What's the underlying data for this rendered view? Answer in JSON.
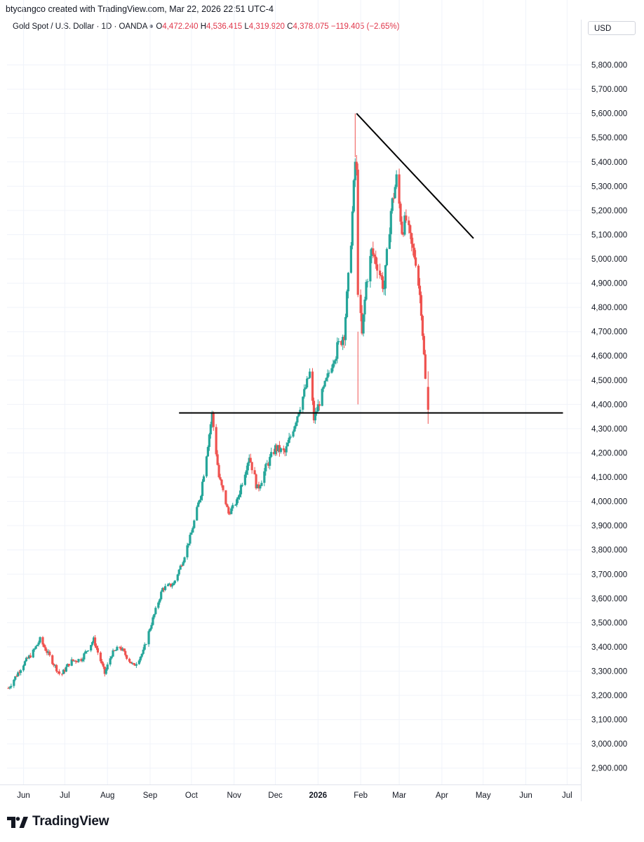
{
  "header": {
    "attribution": "btycangco created with TradingView.com, Mar 22, 2026 22:51 UTC-4"
  },
  "legend": {
    "symbol": "Gold Spot / U.S. Dollar · 1D · OANDA",
    "open_label": "O",
    "open": "4,472.240",
    "high_label": "H",
    "high": "4,536.415",
    "low_label": "L",
    "low": "4,319.920",
    "close_label": "C",
    "close": "4,378.075",
    "change": "−119.405 (−2.65%)"
  },
  "currency_button": "USD",
  "brand": {
    "name": "TradingView",
    "logo_icon": "tradingview-logo-icon"
  },
  "colors": {
    "up": "#26a69a",
    "down": "#ef5350",
    "trendline": "#000000"
  },
  "chart_data": {
    "type": "candlestick",
    "title": "Gold Spot / U.S. Dollar",
    "interval": "1D",
    "grid": true,
    "ylim": [
      2850,
      5900
    ],
    "y_ticks": [
      "5,800.000",
      "5,700.000",
      "5,600.000",
      "5,500.000",
      "5,400.000",
      "5,300.000",
      "5,200.000",
      "5,100.000",
      "5,000.000",
      "4,900.000",
      "4,800.000",
      "4,700.000",
      "4,600.000",
      "4,500.000",
      "4,400.000",
      "4,300.000",
      "4,200.000",
      "4,100.000",
      "4,000.000",
      "3,900.000",
      "3,800.000",
      "3,700.000",
      "3,600.000",
      "3,500.000",
      "3,400.000",
      "3,300.000",
      "3,200.000",
      "3,100.000",
      "3,000.000",
      "2,900.000"
    ],
    "x_ticks": [
      "Jun",
      "Jul",
      "Aug",
      "Sep",
      "Oct",
      "Nov",
      "Dec",
      "2026",
      "Feb",
      "Mar",
      "Apr",
      "May",
      "Jun",
      "Jul"
    ],
    "x_range": [
      "2025-05-20",
      "2026-07-11"
    ],
    "price_path": [
      [
        "2025-05-21",
        3230
      ],
      [
        "2025-06-01",
        3330
      ],
      [
        "2025-06-08",
        3380
      ],
      [
        "2025-06-13",
        3430
      ],
      [
        "2025-06-20",
        3360
      ],
      [
        "2025-06-28",
        3280
      ],
      [
        "2025-07-05",
        3340
      ],
      [
        "2025-07-13",
        3350
      ],
      [
        "2025-07-22",
        3430
      ],
      [
        "2025-07-30",
        3290
      ],
      [
        "2025-08-04",
        3370
      ],
      [
        "2025-08-10",
        3400
      ],
      [
        "2025-08-20",
        3320
      ],
      [
        "2025-08-27",
        3380
      ],
      [
        "2025-09-01",
        3480
      ],
      [
        "2025-09-10",
        3640
      ],
      [
        "2025-09-18",
        3660
      ],
      [
        "2025-09-25",
        3760
      ],
      [
        "2025-10-01",
        3870
      ],
      [
        "2025-10-08",
        4040
      ],
      [
        "2025-10-16",
        4360
      ],
      [
        "2025-10-21",
        4100
      ],
      [
        "2025-10-28",
        3950
      ],
      [
        "2025-11-03",
        4000
      ],
      [
        "2025-11-12",
        4190
      ],
      [
        "2025-11-18",
        4050
      ],
      [
        "2025-11-25",
        4150
      ],
      [
        "2025-12-01",
        4220
      ],
      [
        "2025-12-08",
        4200
      ],
      [
        "2025-12-15",
        4320
      ],
      [
        "2025-12-22",
        4450
      ],
      [
        "2025-12-26",
        4530
      ],
      [
        "2025-12-29",
        4340
      ],
      [
        "2026-01-06",
        4480
      ],
      [
        "2026-01-13",
        4600
      ],
      [
        "2026-01-20",
        4700
      ],
      [
        "2026-01-24",
        4980
      ],
      [
        "2026-01-28",
        5400
      ],
      [
        "2026-01-29",
        5350
      ],
      [
        "2026-01-30",
        4880
      ],
      [
        "2026-02-02",
        4680
      ],
      [
        "2026-02-05",
        4900
      ],
      [
        "2026-02-09",
        5030
      ],
      [
        "2026-02-13",
        4980
      ],
      [
        "2026-02-18",
        4880
      ],
      [
        "2026-02-23",
        5200
      ],
      [
        "2026-02-27",
        5330
      ],
      [
        "2026-03-03",
        5120
      ],
      [
        "2026-03-06",
        5160
      ],
      [
        "2026-03-10",
        5050
      ],
      [
        "2026-03-13",
        5000
      ],
      [
        "2026-03-17",
        4800
      ],
      [
        "2026-03-19",
        4600
      ],
      [
        "2026-03-20",
        4500
      ],
      [
        "2026-03-22",
        4378
      ]
    ],
    "last_candle": {
      "date": "2026-03-22",
      "open": 4472.24,
      "high": 4536.415,
      "low": 4319.92,
      "close": 4378.075
    },
    "annotations": [
      {
        "type": "horizontal_line",
        "value": 4365,
        "from": "2025-09-22",
        "to": "2026-06-28"
      },
      {
        "type": "trendline",
        "from": [
          "2026-01-29",
          5600
        ],
        "to": [
          "2026-04-24",
          5085
        ]
      }
    ]
  }
}
